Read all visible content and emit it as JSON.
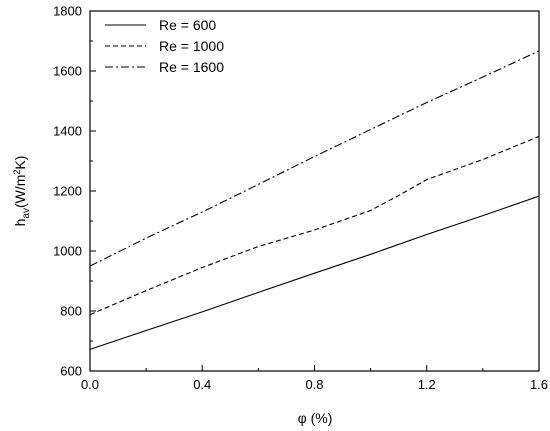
{
  "chart_data": {
    "type": "line",
    "xlabel": "φ (%)",
    "ylabel": "h_av(W/m²K)",
    "xlim": [
      0,
      1.6
    ],
    "ylim": [
      600,
      1800
    ],
    "xticks": [
      0,
      0.4,
      0.8,
      1.2,
      1.6
    ],
    "yticks": [
      600,
      800,
      1000,
      1200,
      1400,
      1600,
      1800
    ],
    "xtick_labels": [
      "0.0",
      "0.4",
      "0.8",
      "1.2",
      "1.6"
    ],
    "ytick_labels": [
      "600",
      "800",
      "1000",
      "1200",
      "1400",
      "1600",
      "1800"
    ],
    "legend_position": "top-left",
    "grid": false,
    "series": [
      {
        "name": "Re = 600",
        "style": "solid",
        "x": [
          0,
          0.2,
          0.4,
          0.6,
          0.8,
          1.0,
          1.2,
          1.4,
          1.6
        ],
        "y": [
          672,
          735,
          797,
          862,
          926,
          989,
          1055,
          1118,
          1183
        ]
      },
      {
        "name": "Re = 1000",
        "style": "dashed",
        "x": [
          0,
          0.2,
          0.4,
          0.6,
          0.8,
          1.0,
          1.1,
          1.2,
          1.4,
          1.6
        ],
        "y": [
          788,
          868,
          945,
          1015,
          1070,
          1135,
          1185,
          1238,
          1305,
          1382
        ]
      },
      {
        "name": "Re = 1600",
        "style": "dashdot",
        "x": [
          0,
          0.2,
          0.4,
          0.6,
          0.8,
          1.0,
          1.2,
          1.4,
          1.6
        ],
        "y": [
          950,
          1043,
          1130,
          1222,
          1315,
          1405,
          1495,
          1580,
          1667
        ]
      }
    ]
  }
}
